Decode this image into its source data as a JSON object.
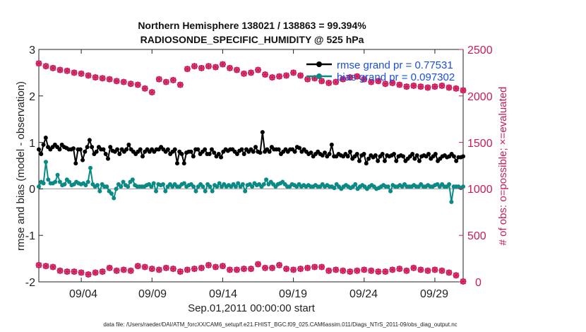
{
  "chart_data": {
    "type": "line",
    "title_line1": "Northern Hemisphere 138021 / 138863 = 99.394%",
    "title_line2": "RADIOSONDE_SPECIFIC_HUMIDITY @ 525 hPa",
    "xlabel": "Sep.01,2011 00:00:00 start",
    "ylabel_left": "rmse and bias (model - observation)",
    "ylabel_right": "# of obs: o=possible; ×=evaluated",
    "x_tick_labels": [
      "09/04",
      "09/09",
      "09/14",
      "09/19",
      "09/24",
      "09/29"
    ],
    "x_tick_days": [
      4,
      9,
      14,
      19,
      24,
      29
    ],
    "xlim_days": [
      1,
      31
    ],
    "ylim_left": [
      -2,
      3
    ],
    "ylim_right": [
      0,
      2500
    ],
    "left_ticks": [
      "3",
      "2",
      "1",
      "0",
      "-1",
      "-2"
    ],
    "left_tick_values": [
      3,
      2,
      1,
      0,
      -1,
      -2
    ],
    "right_ticks": [
      "2500",
      "2000",
      "1500",
      "1000",
      "500",
      "0"
    ],
    "right_tick_values": [
      2500,
      2000,
      1500,
      1000,
      500,
      0
    ],
    "legend": {
      "rmse_label": "rmse grand pr = 0.77531",
      "bias_label": "bias grand pr = 0.097302"
    },
    "footer": "data file: /Users/raeder/DAI/ATM_forcXX/CAM6_setup/f.e21.FHIST_BGC.f09_025.CAM6assim.011/Diags_NTrS_2011-09/obs_diag_output.nc",
    "colors": {
      "rmse": "#000000",
      "bias": "#0a8a84",
      "obs": "#cc1a5a",
      "zero_line": "#b0b0b0"
    },
    "series": [
      {
        "name": "rmse",
        "values": [
          0.85,
          0.75,
          0.95,
          1.1,
          0.9,
          0.85,
          0.9,
          0.95,
          0.9,
          0.85,
          0.95,
          0.9,
          0.88,
          0.85,
          0.85,
          0.87,
          0.55,
          0.85,
          0.85,
          0.62,
          0.8,
          0.9,
          1.05,
          0.9,
          0.75,
          0.8,
          0.9,
          0.85,
          0.85,
          0.75,
          0.65,
          0.9,
          0.82,
          0.8,
          0.85,
          0.75,
          0.85,
          0.8,
          0.85,
          0.95,
          0.85,
          0.8,
          0.75,
          0.8,
          0.85,
          0.7,
          0.8,
          0.85,
          0.8,
          0.85,
          0.8,
          0.85,
          0.85,
          0.9,
          0.85,
          0.8,
          0.85,
          0.75,
          0.8,
          0.85,
          0.55,
          0.8,
          0.75,
          0.55,
          0.78,
          0.8,
          0.8,
          0.7,
          0.85,
          0.85,
          0.75,
          0.8,
          0.85,
          0.75,
          0.75,
          0.85,
          0.78,
          0.7,
          0.75,
          0.68,
          0.8,
          0.85,
          0.82,
          0.85,
          0.85,
          0.8,
          0.75,
          0.82,
          0.85,
          0.75,
          0.85,
          0.8,
          0.85,
          0.8,
          0.9,
          0.8,
          0.78,
          1.22,
          0.8,
          0.85,
          0.8,
          0.9,
          0.85,
          0.85,
          0.85,
          0.75,
          0.8,
          0.85,
          0.8,
          0.85,
          0.85,
          0.8,
          0.9,
          0.88,
          0.8,
          0.85,
          0.8,
          0.75,
          0.78,
          0.7,
          0.75,
          0.8,
          0.75,
          0.72,
          0.78,
          0.7,
          0.75,
          0.95,
          0.7,
          0.7,
          0.75,
          0.72,
          0.7,
          0.75,
          0.7,
          0.8,
          0.65,
          0.7,
          0.75,
          0.6,
          0.72,
          0.75,
          0.55,
          0.65,
          0.72,
          0.68,
          0.72,
          0.6,
          0.7,
          0.75,
          0.6,
          0.72,
          0.7,
          0.72,
          0.75,
          0.6,
          0.7,
          0.72,
          0.7,
          0.6,
          0.65,
          0.7,
          0.75,
          0.65,
          0.72,
          0.6,
          0.7,
          0.72,
          0.7,
          0.75,
          0.65,
          0.7,
          0.75,
          0.6,
          0.65,
          0.7,
          0.72,
          0.68,
          0.7,
          0.75,
          0.7,
          0.6,
          0.68,
          0.68,
          0.7
        ]
      },
      {
        "name": "bias",
        "values": [
          0.05,
          0.15,
          0.12,
          0.58,
          0.2,
          0.12,
          0.12,
          0.15,
          0.3,
          0.15,
          0.08,
          0.1,
          0.2,
          0.15,
          0.08,
          0.1,
          0.15,
          0.12,
          0.1,
          0.12,
          0.08,
          0.15,
          0.45,
          0.1,
          0.05,
          0.08,
          -0.05,
          0.1,
          0.05,
          0.05,
          -0.05,
          -0.1,
          -0.2,
          0.0,
          0.1,
          0.05,
          0.15,
          0.08,
          0.05,
          0.15,
          0.2,
          0.08,
          0.05,
          0.05,
          0.05,
          0.05,
          0.08,
          0.1,
          0.05,
          0.12,
          -0.05,
          0.1,
          0.08,
          0.1,
          -0.05,
          0.05,
          0.1,
          0.05,
          0.1,
          0.05,
          0.05,
          0.1,
          0.12,
          0.05,
          0.08,
          0.1,
          0.05,
          -0.05,
          0.05,
          0.1,
          0.05,
          -0.05,
          0.1,
          0.05,
          -0.05,
          0.08,
          0.05,
          0.12,
          0.05,
          0.1,
          0.05,
          0.08,
          0.05,
          0.1,
          0.05,
          0.12,
          0.05,
          0.1,
          -0.05,
          0.08,
          0.1,
          0.05,
          0.12,
          0.08,
          0.1,
          0.05,
          0.1,
          0.2,
          0.1,
          0.15,
          0.1,
          0.05,
          0.1,
          0.12,
          0.15,
          0.1,
          0.05,
          0.05,
          0.1,
          0.08,
          0.05,
          0.1,
          0.05,
          0.08,
          0.05,
          0.08,
          0.05,
          0.05,
          0.08,
          0.05,
          0.05,
          0.1,
          0.05,
          0.08,
          0.05,
          0.05,
          0.02,
          0.1,
          0.05,
          0.0,
          0.05,
          0.08,
          0.05,
          0.02,
          0.05,
          0.1,
          0.0,
          0.05,
          0.08,
          0.05,
          0.0,
          0.05,
          0.08,
          0.05,
          0.0,
          0.02,
          0.05,
          0.08,
          0.05,
          0.05,
          -0.05,
          0.08,
          0.05,
          0.05,
          0.08,
          0.05,
          0.1,
          0.05,
          0.05,
          0.05,
          0.08,
          0.05,
          0.05,
          0.1,
          0.05,
          0.05,
          0.08,
          0.05,
          0.05,
          0.08,
          0.1,
          0.05,
          0.1,
          0.05,
          0.05,
          0.1,
          -0.28,
          0.05,
          0.05,
          0.05,
          0.02,
          0.05
        ]
      },
      {
        "name": "obs_possible_00Z",
        "values": [
          2350,
          2320,
          2300,
          2280,
          2270,
          2250,
          2240,
          2220,
          2200,
          2190,
          2180,
          2160,
          2150,
          2130,
          2120,
          2080,
          2040,
          2180,
          2150,
          2170,
          2120,
          2290,
          2320,
          2300,
          2320,
          2310,
          2340,
          2300,
          2280,
          2240,
          2250,
          2280,
          2230,
          2200,
          2210,
          2220,
          2250,
          2220,
          2180,
          2190,
          2160,
          2140,
          2150,
          2180,
          2200,
          2210,
          2180,
          2150,
          2160,
          2130,
          2140,
          2120,
          2100,
          2110,
          2100,
          2090,
          2100,
          2110,
          2090,
          2080,
          2060
        ]
      },
      {
        "name": "obs_low_12Z",
        "values": [
          180,
          170,
          160,
          120,
          110,
          110,
          100,
          80,
          100,
          110,
          150,
          120,
          130,
          120,
          170,
          160,
          140,
          130,
          150,
          140,
          110,
          130,
          140,
          150,
          180,
          160,
          170,
          130,
          130,
          140,
          140,
          190,
          150,
          150,
          180,
          140,
          130,
          140,
          150,
          160,
          160,
          120,
          130,
          120,
          110,
          120,
          130,
          120,
          110,
          110,
          130,
          140,
          120,
          150,
          130,
          120,
          130,
          120,
          100,
          70,
          5
        ]
      }
    ]
  }
}
